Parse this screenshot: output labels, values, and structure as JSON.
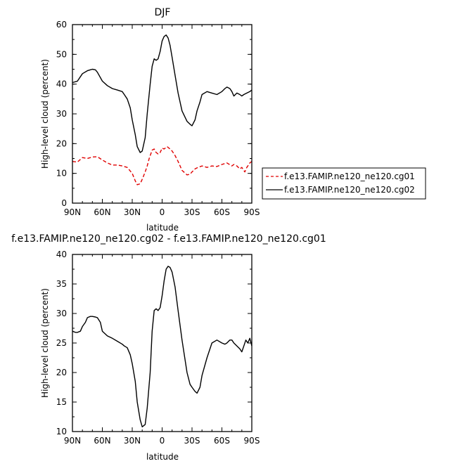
{
  "chart_data": [
    {
      "type": "line",
      "title": "DJF",
      "xlabel": "latitude",
      "ylabel": "High-level cloud (percent)",
      "xlim": [
        90,
        -90
      ],
      "ylim": [
        0,
        60
      ],
      "xticks": [
        {
          "v": 90,
          "label": "90N"
        },
        {
          "v": 60,
          "label": "60N"
        },
        {
          "v": 30,
          "label": "30N"
        },
        {
          "v": 0,
          "label": "0"
        },
        {
          "v": -30,
          "label": "30S"
        },
        {
          "v": -60,
          "label": "60S"
        },
        {
          "v": -90,
          "label": "90S"
        }
      ],
      "yticks": [
        0,
        10,
        20,
        30,
        40,
        50,
        60
      ],
      "legend_position": "right",
      "series": [
        {
          "name": "f.e13.FAMIP.ne120_ne120.cg01",
          "color": "#e00000",
          "dash": "dashed",
          "x": [
            90,
            85,
            80,
            75,
            70,
            65,
            60,
            55,
            50,
            45,
            40,
            35,
            30,
            27,
            25,
            22,
            20,
            17,
            15,
            13,
            10,
            8,
            6,
            4,
            2,
            0,
            -2,
            -5,
            -8,
            -10,
            -13,
            -16,
            -20,
            -25,
            -28,
            -30,
            -33,
            -36,
            -40,
            -45,
            -50,
            -55,
            -60,
            -65,
            -70,
            -72,
            -75,
            -78,
            -80,
            -83,
            -85,
            -88,
            -90
          ],
          "y": [
            14,
            13.8,
            15.3,
            15,
            15.5,
            15.6,
            14.5,
            13.5,
            12.8,
            12.8,
            12.5,
            12,
            10,
            7.5,
            6.2,
            6.5,
            8,
            10.5,
            12.5,
            15,
            17.8,
            18.2,
            17,
            16.5,
            17,
            18.5,
            18.2,
            19,
            18.2,
            17.5,
            16,
            14,
            11,
            9.5,
            9.7,
            10.5,
            11.5,
            12,
            12.5,
            12,
            12.5,
            12.3,
            13,
            13.5,
            12.5,
            13,
            12.5,
            11.5,
            12,
            10.5,
            12,
            13.5,
            14
          ]
        },
        {
          "name": "f.e13.FAMIP.ne120_ne120.cg02",
          "color": "#000000",
          "dash": "solid",
          "x": [
            90,
            85,
            80,
            75,
            72,
            70,
            67,
            65,
            60,
            55,
            50,
            45,
            40,
            38,
            35,
            32,
            30,
            27,
            25,
            22,
            20,
            17,
            15,
            12,
            10,
            8,
            6,
            4,
            2,
            0,
            -2,
            -4,
            -6,
            -8,
            -10,
            -13,
            -16,
            -20,
            -25,
            -28,
            -30,
            -33,
            -35,
            -38,
            -40,
            -45,
            -50,
            -55,
            -60,
            -63,
            -65,
            -68,
            -70,
            -72,
            -75,
            -78,
            -80,
            -82,
            -85,
            -88,
            -90
          ],
          "y": [
            40.5,
            41,
            43.5,
            44.5,
            44.8,
            45,
            44.8,
            44,
            41,
            39.5,
            38.5,
            38,
            37.5,
            36.5,
            35,
            32,
            28,
            23,
            19,
            17,
            17.5,
            22,
            30,
            40,
            46,
            48.5,
            48,
            48.5,
            51,
            54.5,
            56,
            56.5,
            55.5,
            53,
            49,
            43,
            37,
            31,
            27.5,
            26.5,
            26,
            28,
            31,
            34,
            36.5,
            37.5,
            37,
            36.5,
            37.5,
            38.5,
            39,
            38.5,
            37.5,
            36,
            37,
            36.5,
            36,
            36.5,
            37,
            37.5,
            38
          ]
        }
      ]
    },
    {
      "type": "line",
      "title": "f.e13.FAMIP.ne120_ne120.cg02 - f.e13.FAMIP.ne120_ne120.cg01",
      "xlabel": "latitude",
      "ylabel": "High-level cloud (percent)",
      "xlim": [
        90,
        -90
      ],
      "ylim": [
        10,
        40
      ],
      "xticks": [
        {
          "v": 90,
          "label": "90N"
        },
        {
          "v": 60,
          "label": "60N"
        },
        {
          "v": 30,
          "label": "30N"
        },
        {
          "v": 0,
          "label": "0"
        },
        {
          "v": -30,
          "label": "30S"
        },
        {
          "v": -60,
          "label": "60S"
        },
        {
          "v": -90,
          "label": "90S"
        }
      ],
      "yticks": [
        10,
        15,
        20,
        25,
        30,
        35,
        40
      ],
      "series": [
        {
          "color": "#000000",
          "dash": "solid",
          "x": [
            90,
            87,
            85,
            82,
            80,
            77,
            75,
            72,
            70,
            67,
            65,
            62,
            60,
            55,
            50,
            45,
            40,
            38,
            35,
            32,
            30,
            27,
            25,
            22,
            20,
            17,
            15,
            12,
            10,
            8,
            6,
            4,
            2,
            0,
            -2,
            -4,
            -6,
            -8,
            -10,
            -13,
            -16,
            -20,
            -25,
            -28,
            -30,
            -33,
            -35,
            -38,
            -40,
            -45,
            -50,
            -55,
            -60,
            -63,
            -65,
            -68,
            -70,
            -72,
            -75,
            -78,
            -80,
            -82,
            -84,
            -86,
            -88,
            -90
          ],
          "y": [
            27,
            26.8,
            26.8,
            27,
            27.8,
            28.5,
            29.3,
            29.5,
            29.5,
            29.4,
            29.3,
            28.5,
            27,
            26.2,
            25.8,
            25.3,
            24.8,
            24.5,
            24.2,
            23,
            21.5,
            18.5,
            15,
            12,
            10.8,
            11.2,
            14,
            20,
            27,
            30.5,
            30.8,
            30.5,
            31,
            33,
            35.5,
            37.5,
            38,
            37.8,
            37,
            34.5,
            30.5,
            25.5,
            20,
            18,
            17.5,
            16.8,
            16.5,
            17.5,
            19.5,
            22.5,
            25,
            25.5,
            25,
            24.8,
            25,
            25.5,
            25.5,
            25,
            24.5,
            24,
            23.5,
            24.5,
            25.5,
            25,
            25.8,
            24.5
          ]
        }
      ]
    }
  ]
}
